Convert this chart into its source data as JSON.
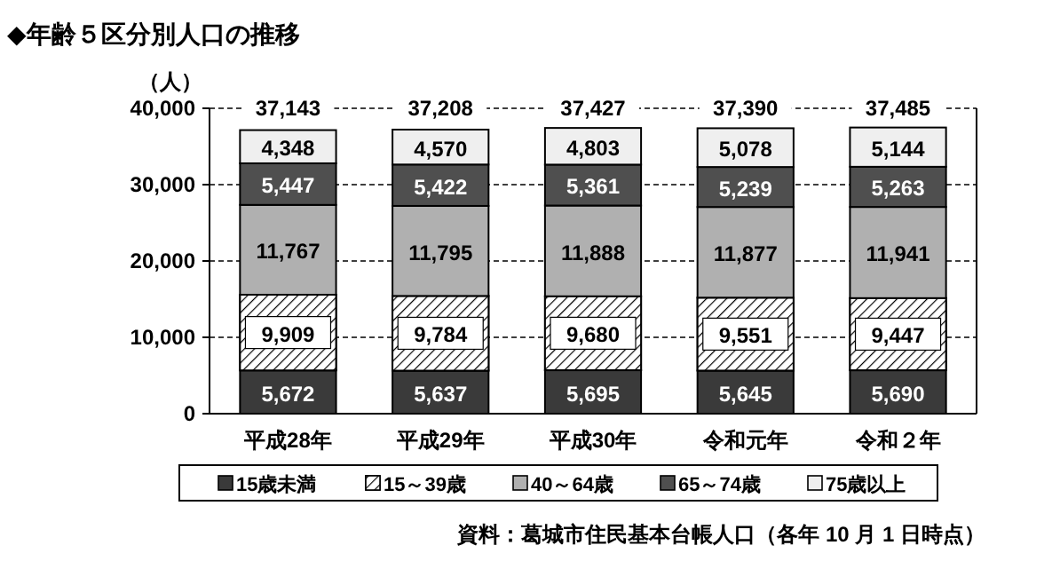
{
  "chart_data": {
    "type": "bar",
    "stacked": true,
    "title": "◆年齢５区分別人口の推移",
    "ylabel": "（人）",
    "categories": [
      "平成28年",
      "平成29年",
      "平成30年",
      "令和元年",
      "令和２年"
    ],
    "series": [
      {
        "name": "15歳未満",
        "color": "#3a3a3a",
        "values": [
          5672,
          5637,
          5695,
          5645,
          5690
        ],
        "value_labels": [
          "5,672",
          "5,637",
          "5,695",
          "5,645",
          "5,690"
        ]
      },
      {
        "name": "15～39歳",
        "color": "#ffffff",
        "values": [
          9909,
          9784,
          9680,
          9551,
          9447
        ],
        "value_labels": [
          "9,909",
          "9,784",
          "9,680",
          "9,551",
          "9,447"
        ]
      },
      {
        "name": "40～64歳",
        "color": "#b0b0b0",
        "values": [
          11767,
          11795,
          11888,
          11877,
          11941
        ],
        "value_labels": [
          "11,767",
          "11,795",
          "11,888",
          "11,877",
          "11,941"
        ]
      },
      {
        "name": "65～74歳",
        "color": "#4f4f4f",
        "values": [
          5447,
          5422,
          5361,
          5239,
          5263
        ],
        "value_labels": [
          "5,447",
          "5,422",
          "5,361",
          "5,239",
          "5,263"
        ]
      },
      {
        "name": "75歳以上",
        "color": "#efefef",
        "values": [
          4348,
          4570,
          4803,
          5078,
          5144
        ],
        "value_labels": [
          "4,348",
          "4,570",
          "4,803",
          "5,078",
          "5,144"
        ]
      }
    ],
    "totals": [
      "37,143",
      "37,208",
      "37,427",
      "37,390",
      "37,485"
    ],
    "ylim": [
      0,
      40000
    ],
    "yticks": [
      {
        "value": 0,
        "label": "0"
      },
      {
        "value": 10000,
        "label": "10,000"
      },
      {
        "value": 20000,
        "label": "20,000"
      },
      {
        "value": 30000,
        "label": "30,000"
      },
      {
        "value": 40000,
        "label": "40,000"
      }
    ],
    "grid": "y",
    "legend": "bottom",
    "annotations": [
      "資料：葛城市住民基本台帳人口（各年 10 月 1 日時点）"
    ]
  }
}
